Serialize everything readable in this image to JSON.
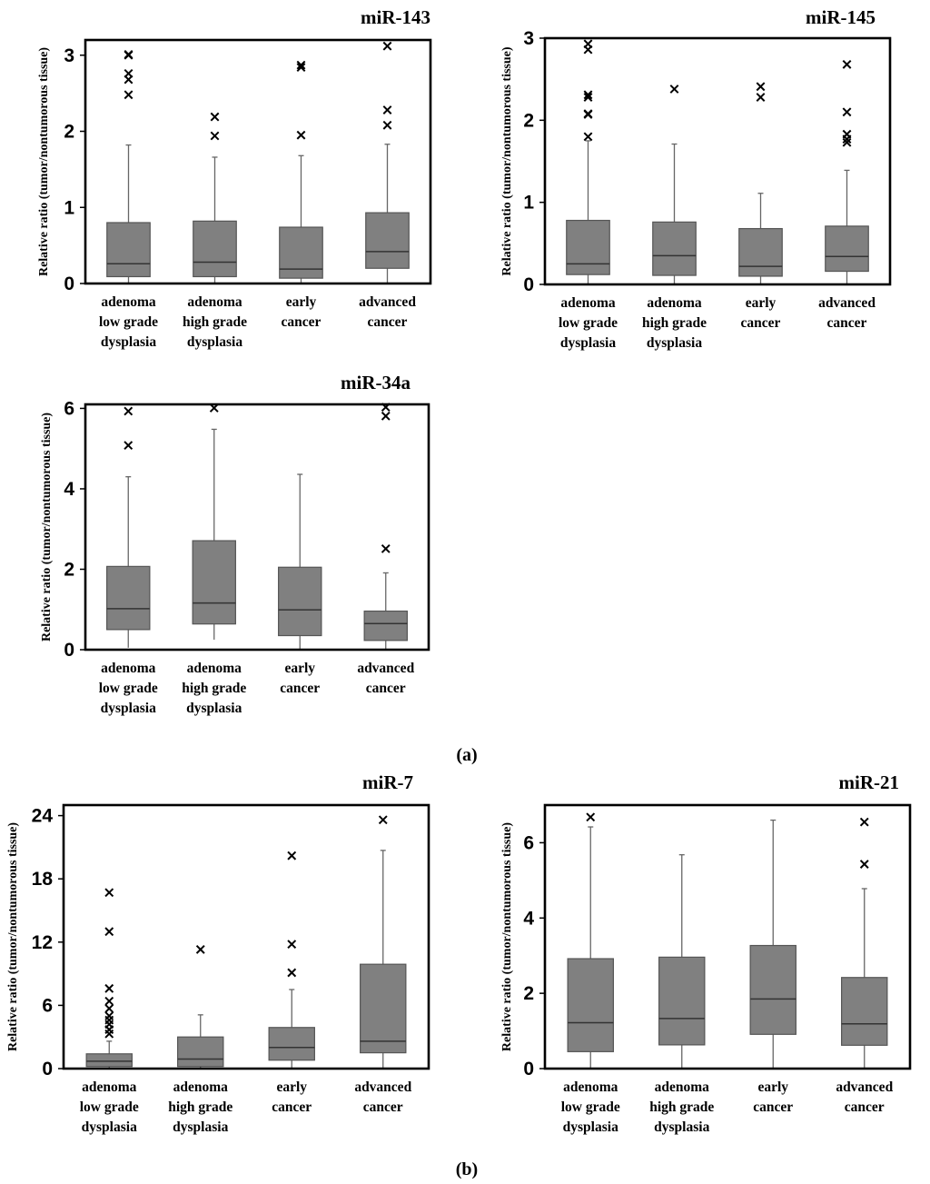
{
  "panel_labels": [
    "(a)",
    "(b)"
  ],
  "colors": {
    "box_fill": "#808080",
    "line": "#000000",
    "whisker": "#666666"
  },
  "chart_data": [
    {
      "type": "boxplot",
      "title": "miR-143",
      "ylabel": "Relative ratio  (tumor/nontumorous  tissue)",
      "ylim": [
        0,
        3.2
      ],
      "yticks": [
        0,
        1,
        2,
        3
      ],
      "categories": [
        [
          "adenoma",
          "low grade",
          "dysplasia"
        ],
        [
          "adenoma",
          "high grade",
          "dysplasia"
        ],
        [
          "early",
          "cancer"
        ],
        [
          "advanced",
          "cancer"
        ]
      ],
      "boxes": [
        {
          "min": 0.0,
          "q1": 0.09,
          "median": 0.26,
          "q3": 0.8,
          "max": 1.82,
          "outliers": [
            2.48,
            2.68,
            2.76,
            3.0,
            3.01
          ]
        },
        {
          "min": 0.0,
          "q1": 0.09,
          "median": 0.28,
          "q3": 0.82,
          "max": 1.66,
          "outliers": [
            1.94,
            2.19
          ]
        },
        {
          "min": 0.0,
          "q1": 0.07,
          "median": 0.19,
          "q3": 0.74,
          "max": 1.68,
          "outliers": [
            1.95,
            2.84,
            2.87
          ]
        },
        {
          "min": 0.0,
          "q1": 0.2,
          "median": 0.42,
          "q3": 0.93,
          "max": 1.83,
          "outliers": [
            2.08,
            2.28,
            3.12
          ]
        }
      ]
    },
    {
      "type": "boxplot",
      "title": "miR-145",
      "ylabel": "Relative ratio  (tumor/nontumorous  tissue)",
      "ylim": [
        0,
        3.0
      ],
      "yticks": [
        0,
        1,
        2,
        3
      ],
      "categories": [
        [
          "adenoma",
          "low grade",
          "dysplasia"
        ],
        [
          "adenoma",
          "high grade",
          "dysplasia"
        ],
        [
          "early",
          "cancer"
        ],
        [
          "advanced",
          "cancer"
        ]
      ],
      "boxes": [
        {
          "min": 0.0,
          "q1": 0.12,
          "median": 0.25,
          "q3": 0.78,
          "max": 1.75,
          "outliers": [
            1.8,
            2.07,
            2.08,
            2.28,
            2.31,
            2.86,
            2.93
          ]
        },
        {
          "min": 0.0,
          "q1": 0.11,
          "median": 0.35,
          "q3": 0.76,
          "max": 1.71,
          "outliers": [
            2.38
          ]
        },
        {
          "min": 0.0,
          "q1": 0.1,
          "median": 0.22,
          "q3": 0.68,
          "max": 1.11,
          "outliers": [
            2.28,
            2.41
          ]
        },
        {
          "min": 0.0,
          "q1": 0.16,
          "median": 0.34,
          "q3": 0.71,
          "max": 1.39,
          "outliers": [
            1.73,
            1.77,
            1.83,
            2.1,
            2.68
          ]
        }
      ]
    },
    {
      "type": "boxplot",
      "title": "miR-34a",
      "ylabel": "Relative ratio  (tumor/nontumorous  tissue)",
      "ylim": [
        0,
        6.1
      ],
      "yticks": [
        0,
        2,
        4,
        6
      ],
      "categories": [
        [
          "adenoma",
          "low grade",
          "dysplasia"
        ],
        [
          "adenoma",
          "high grade",
          "dysplasia"
        ],
        [
          "early",
          "cancer"
        ],
        [
          "advanced",
          "cancer"
        ]
      ],
      "boxes": [
        {
          "min": 0.05,
          "q1": 0.5,
          "median": 1.02,
          "q3": 2.07,
          "max": 4.3,
          "outliers": [
            5.08,
            5.93
          ]
        },
        {
          "min": 0.25,
          "q1": 0.64,
          "median": 1.16,
          "q3": 2.71,
          "max": 5.48,
          "outliers": [
            6.01
          ]
        },
        {
          "min": 0.0,
          "q1": 0.35,
          "median": 0.99,
          "q3": 2.05,
          "max": 4.36,
          "outliers": []
        },
        {
          "min": 0.0,
          "q1": 0.23,
          "median": 0.65,
          "q3": 0.96,
          "max": 1.91,
          "outliers": [
            2.51,
            5.81,
            6.03
          ]
        }
      ]
    },
    {
      "type": "boxplot",
      "title": "miR-7",
      "ylabel": "Relative ratio  (tumor/nontumorous  tissue)",
      "ylim": [
        0,
        25
      ],
      "yticks": [
        0,
        6,
        12,
        18,
        24
      ],
      "categories": [
        [
          "adenoma",
          "low grade",
          "dysplasia"
        ],
        [
          "adenoma",
          "high grade",
          "dysplasia"
        ],
        [
          "early",
          "cancer"
        ],
        [
          "advanced",
          "cancer"
        ]
      ],
      "boxes": [
        {
          "min": 0.0,
          "q1": 0.2,
          "median": 0.7,
          "q3": 1.4,
          "max": 2.6,
          "outliers": [
            3.3,
            3.7,
            4.2,
            4.6,
            5.0,
            5.7,
            6.4,
            7.6,
            13.0,
            16.7
          ]
        },
        {
          "min": 0.0,
          "q1": 0.2,
          "median": 0.9,
          "q3": 3.0,
          "max": 5.1,
          "outliers": [
            11.3
          ]
        },
        {
          "min": 0.0,
          "q1": 0.8,
          "median": 2.0,
          "q3": 3.9,
          "max": 7.5,
          "outliers": [
            9.1,
            11.8,
            20.2
          ]
        },
        {
          "min": 0.0,
          "q1": 1.5,
          "median": 2.6,
          "q3": 9.9,
          "max": 20.7,
          "outliers": [
            23.6
          ]
        }
      ]
    },
    {
      "type": "boxplot",
      "title": "miR-21",
      "ylabel": "Relative ratio  (tumor/nontumorous  tissue)",
      "ylim": [
        0,
        7.0
      ],
      "yticks": [
        0,
        2,
        4,
        6
      ],
      "categories": [
        [
          "adenoma",
          "low grade",
          "dysplasia"
        ],
        [
          "adenoma",
          "high grade",
          "dysplasia"
        ],
        [
          "early",
          "cancer"
        ],
        [
          "advanced",
          "cancer"
        ]
      ],
      "boxes": [
        {
          "min": 0.0,
          "q1": 0.45,
          "median": 1.22,
          "q3": 2.92,
          "max": 6.42,
          "outliers": [
            6.68
          ]
        },
        {
          "min": 0.0,
          "q1": 0.63,
          "median": 1.33,
          "q3": 2.96,
          "max": 5.68,
          "outliers": []
        },
        {
          "min": 0.0,
          "q1": 0.91,
          "median": 1.85,
          "q3": 3.27,
          "max": 6.6,
          "outliers": []
        },
        {
          "min": 0.0,
          "q1": 0.62,
          "median": 1.19,
          "q3": 2.42,
          "max": 4.78,
          "outliers": [
            5.43,
            6.55
          ]
        }
      ]
    }
  ]
}
